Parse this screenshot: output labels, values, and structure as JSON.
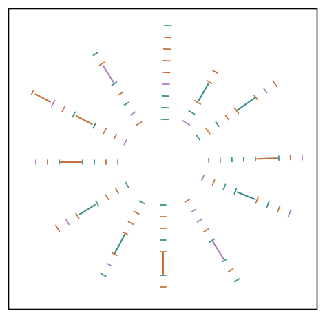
{
  "figure": {
    "description_free": true,
    "palette": {
      "teal": "#3a8f8c",
      "orange": "#c8703a",
      "purple": "#a97ec0"
    },
    "rays": [
      {
        "id": "ray-1",
        "angle_deg": -88,
        "marks": [
          [
            "teal",
            10
          ],
          [
            "teal",
            10
          ],
          [
            "teal",
            10
          ],
          [
            "purple",
            10
          ],
          [
            "orange",
            10
          ],
          [
            "orange",
            10
          ],
          [
            "orange",
            10
          ],
          [
            "orange",
            10
          ],
          [
            "teal",
            10
          ]
        ]
      },
      {
        "id": "ray-2",
        "angle_deg": -60,
        "marks": [
          [
            "purple",
            12
          ],
          [
            "teal",
            10
          ],
          [
            "orange",
            10
          ],
          [
            "teal",
            28
          ],
          [
            "orange",
            8
          ],
          [
            "orange",
            8
          ]
        ]
      },
      {
        "id": "ray-3",
        "angle_deg": -35,
        "marks": [
          [
            "teal",
            8
          ],
          [
            "orange",
            10
          ],
          [
            "teal",
            8
          ],
          [
            "orange",
            8
          ],
          [
            "orange",
            10
          ],
          [
            "teal",
            30
          ],
          [
            "orange",
            8
          ],
          [
            "purple",
            8
          ],
          [
            "orange",
            10
          ]
        ]
      },
      {
        "id": "ray-4",
        "angle_deg": -2,
        "marks": [
          [
            "purple",
            6
          ],
          [
            "purple",
            6
          ],
          [
            "teal",
            6
          ],
          [
            "teal",
            6
          ],
          [
            "teal",
            6
          ],
          [
            "orange",
            30
          ],
          [
            "teal",
            6
          ],
          [
            "orange",
            6
          ],
          [
            "purple",
            8
          ]
        ]
      },
      {
        "id": "ray-5",
        "angle_deg": 22,
        "marks": [
          [
            "purple",
            8
          ],
          [
            "orange",
            8
          ],
          [
            "teal",
            8
          ],
          [
            "teal",
            8
          ],
          [
            "teal",
            28
          ],
          [
            "orange",
            10
          ],
          [
            "teal",
            10
          ],
          [
            "orange",
            10
          ],
          [
            "purple",
            10
          ]
        ]
      },
      {
        "id": "ray-6",
        "angle_deg": 58,
        "marks": [
          [
            "orange",
            8
          ],
          [
            "purple",
            8
          ],
          [
            "purple",
            8
          ],
          [
            "orange",
            8
          ],
          [
            "teal",
            8
          ],
          [
            "purple",
            30
          ],
          [
            "teal",
            8
          ],
          [
            "orange",
            8
          ],
          [
            "teal",
            8
          ]
        ]
      },
      {
        "id": "ray-7",
        "angle_deg": 90,
        "marks": [
          [
            "teal",
            8
          ],
          [
            "orange",
            8
          ],
          [
            "orange",
            8
          ],
          [
            "teal",
            8
          ],
          [
            "orange",
            8
          ],
          [
            "orange",
            30
          ],
          [
            "teal",
            8
          ],
          [
            "orange",
            8
          ]
        ]
      },
      {
        "id": "ray-8",
        "angle_deg": 118,
        "marks": [
          [
            "teal",
            8
          ],
          [
            "orange",
            8
          ],
          [
            "orange",
            8
          ],
          [
            "orange",
            8
          ],
          [
            "teal",
            30
          ],
          [
            "orange",
            8
          ],
          [
            "purple",
            6
          ],
          [
            "teal",
            8
          ]
        ]
      },
      {
        "id": "ray-9",
        "angle_deg": 148,
        "marks": [
          [
            "teal",
            8
          ],
          [
            "orange",
            8
          ],
          [
            "orange",
            8
          ],
          [
            "teal",
            8
          ],
          [
            "teal",
            26
          ],
          [
            "orange",
            8
          ],
          [
            "purple",
            8
          ],
          [
            "orange",
            10
          ]
        ]
      },
      {
        "id": "ray-10",
        "angle_deg": 180,
        "marks": [
          [
            "purple",
            6
          ],
          [
            "orange",
            6
          ],
          [
            "teal",
            6
          ],
          [
            "teal",
            6
          ],
          [
            "orange",
            30
          ],
          [
            "teal",
            6
          ],
          [
            "orange",
            6
          ],
          [
            "purple",
            6
          ]
        ]
      },
      {
        "id": "ray-11",
        "angle_deg": 208,
        "marks": [
          [
            "purple",
            8
          ],
          [
            "orange",
            8
          ],
          [
            "orange",
            8
          ],
          [
            "teal",
            8
          ],
          [
            "orange",
            26
          ],
          [
            "teal",
            8
          ],
          [
            "orange",
            8
          ],
          [
            "purple",
            10
          ],
          [
            "orange",
            24
          ],
          [
            "orange",
            6
          ]
        ]
      },
      {
        "id": "ray-12",
        "angle_deg": 238,
        "marks": [
          [
            "orange",
            8
          ],
          [
            "purple",
            8
          ],
          [
            "teal",
            8
          ],
          [
            "orange",
            8
          ],
          [
            "teal",
            8
          ],
          [
            "purple",
            28
          ],
          [
            "orange",
            8
          ],
          [
            "teal",
            8
          ]
        ]
      }
    ]
  }
}
